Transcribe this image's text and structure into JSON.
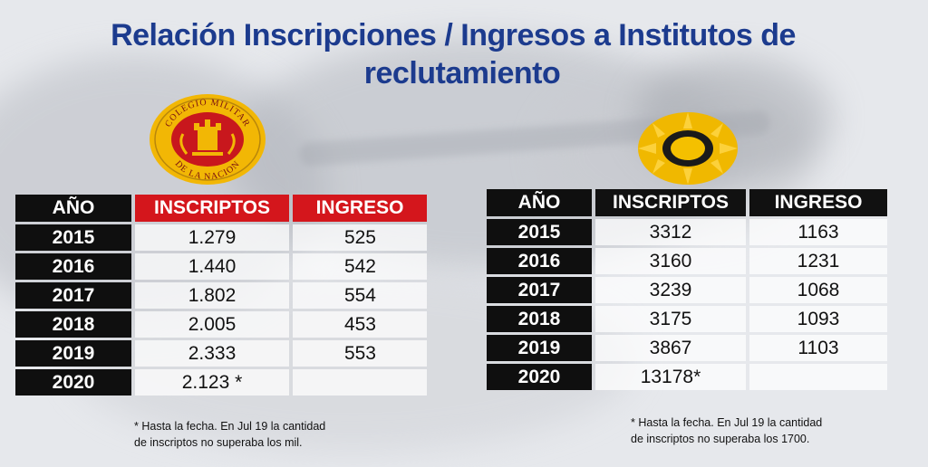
{
  "title_line1": "Relación Inscripciones / Ingresos a Institutos de",
  "title_line2": "reclutamiento",
  "emblem_left_text_top": "COLEGIO MILITAR",
  "emblem_left_text_bottom": "DE LA NACION",
  "table_left": {
    "headers": [
      "AÑO",
      "INSCRIPTOS",
      "INGRESO"
    ],
    "rows": [
      {
        "year": "2015",
        "inscriptos": "1.279",
        "ingreso": "525"
      },
      {
        "year": "2016",
        "inscriptos": "1.440",
        "ingreso": "542"
      },
      {
        "year": "2017",
        "inscriptos": "1.802",
        "ingreso": "554"
      },
      {
        "year": "2018",
        "inscriptos": "2.005",
        "ingreso": "453"
      },
      {
        "year": "2019",
        "inscriptos": "2.333",
        "ingreso": "553"
      },
      {
        "year": "2020",
        "inscriptos": "2.123 *",
        "ingreso": ""
      }
    ],
    "note_line1": "* Hasta la fecha. En Jul 19 la cantidad",
    "note_line2": "de inscriptos no superaba los mil."
  },
  "table_right": {
    "headers": [
      "AÑO",
      "INSCRIPTOS",
      "INGRESO"
    ],
    "rows": [
      {
        "year": "2015",
        "inscriptos": "3312",
        "ingreso": "1163"
      },
      {
        "year": "2016",
        "inscriptos": "3160",
        "ingreso": "1231"
      },
      {
        "year": "2017",
        "inscriptos": "3239",
        "ingreso": "1068"
      },
      {
        "year": "2018",
        "inscriptos": "3175",
        "ingreso": "1093"
      },
      {
        "year": "2019",
        "inscriptos": "3867",
        "ingreso": "1103"
      },
      {
        "year": "2020",
        "inscriptos": "13178*",
        "ingreso": ""
      }
    ],
    "note_line1": "* Hasta la fecha. En Jul 19 la cantidad",
    "note_line2": "de inscriptos no superaba los 1700."
  },
  "colors": {
    "title": "#1c3b8e",
    "header_red": "#d4161c",
    "header_black": "#111111",
    "emblem_gold": "#f2b705"
  }
}
